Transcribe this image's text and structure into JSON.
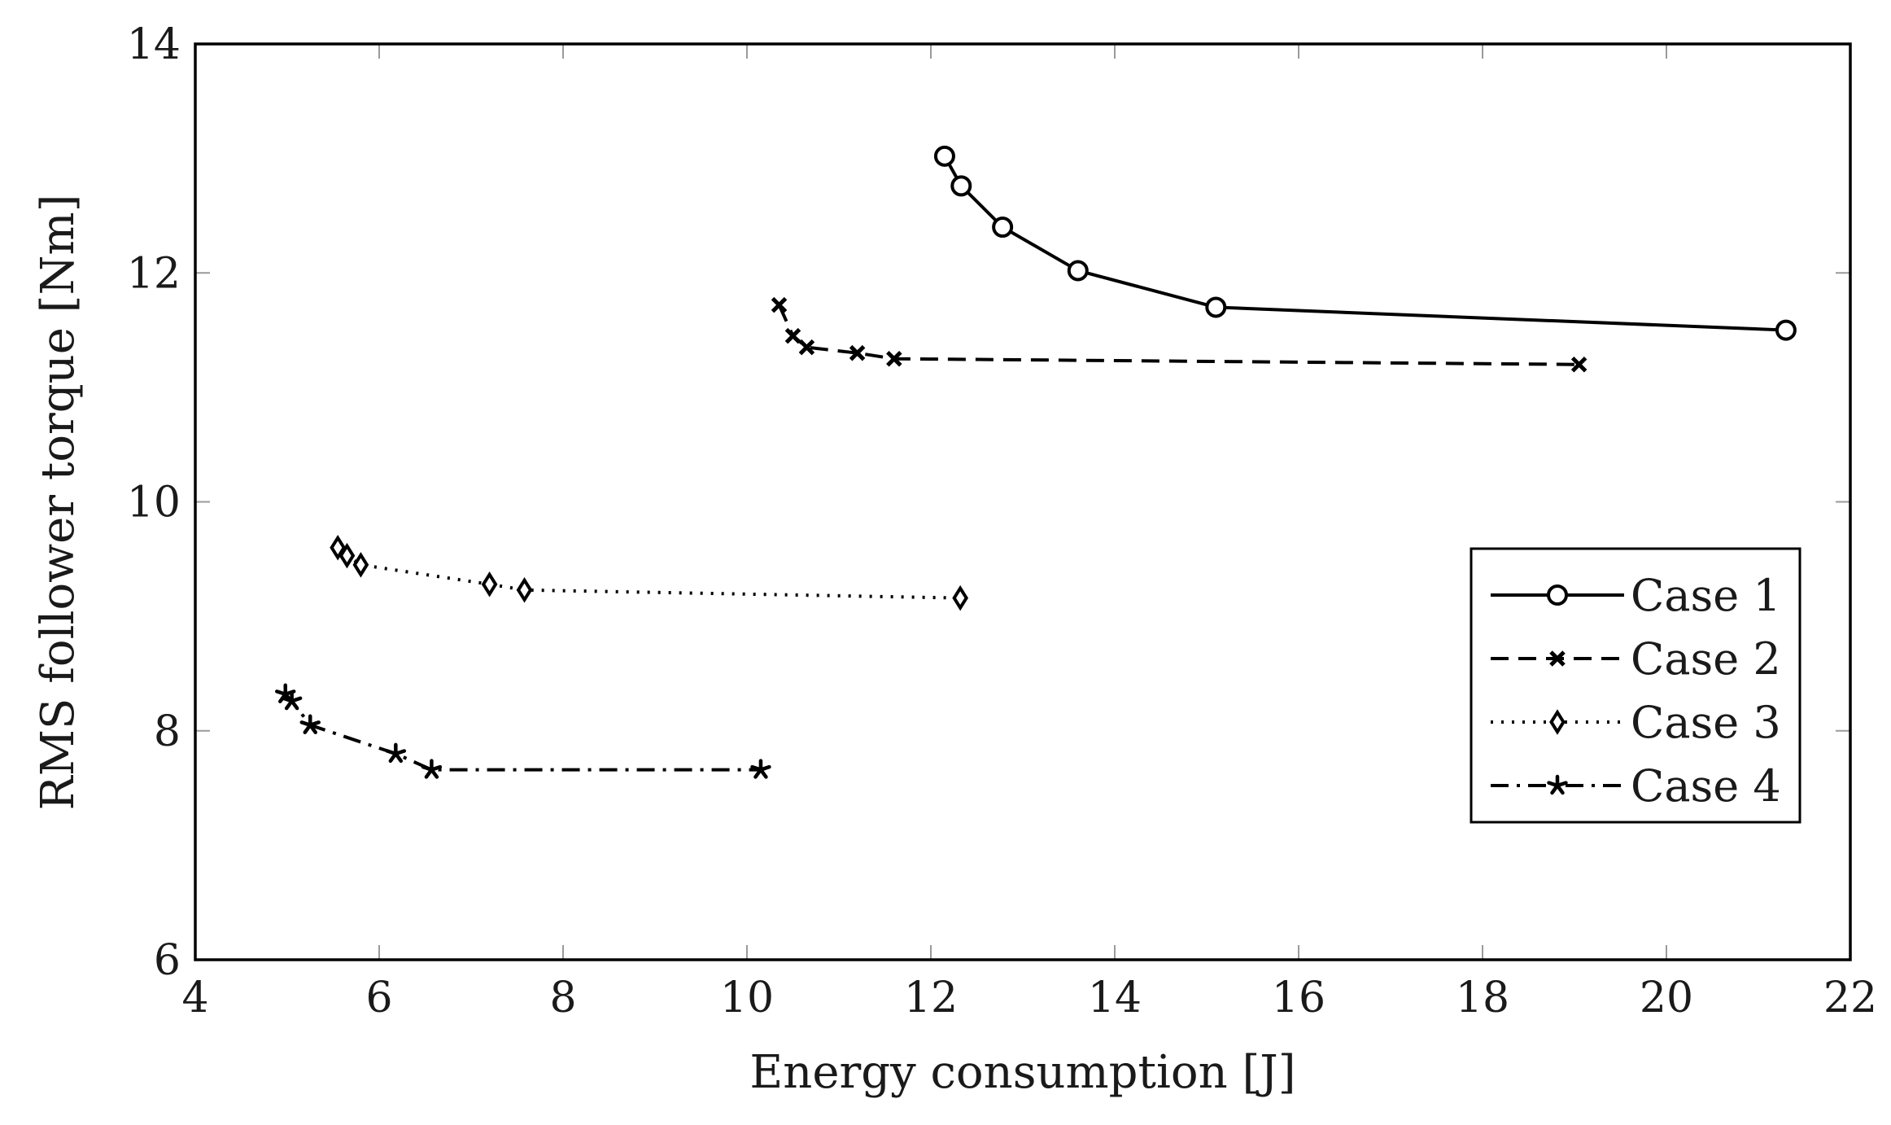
{
  "chart_data": {
    "type": "line",
    "title": "",
    "xlabel": "Energy consumption [J]",
    "ylabel": "RMS follower torque [Nm]",
    "xlim": [
      4,
      22
    ],
    "ylim": [
      6,
      14
    ],
    "xticks": [
      4,
      6,
      8,
      10,
      12,
      14,
      16,
      18,
      20,
      22
    ],
    "yticks": [
      6,
      8,
      10,
      12,
      14
    ],
    "grid": false,
    "legend_position": "center-right",
    "colors": {
      "line": "#000000",
      "axis": "#000000",
      "tick": "#9a9a9a"
    },
    "series": [
      {
        "name": "Case 1",
        "line_style": "solid",
        "marker": "circle",
        "x": [
          12.15,
          12.33,
          12.78,
          13.6,
          15.1,
          21.3
        ],
        "y": [
          13.02,
          12.76,
          12.4,
          12.02,
          11.7,
          11.5
        ]
      },
      {
        "name": "Case 2",
        "line_style": "dashed",
        "marker": "x",
        "x": [
          10.35,
          10.5,
          10.65,
          11.2,
          11.6,
          19.05
        ],
        "y": [
          11.72,
          11.45,
          11.35,
          11.3,
          11.25,
          11.2
        ]
      },
      {
        "name": "Case 3",
        "line_style": "dotted",
        "marker": "diamond",
        "x": [
          5.55,
          5.65,
          5.8,
          7.2,
          7.58,
          12.32
        ],
        "y": [
          9.6,
          9.53,
          9.45,
          9.28,
          9.23,
          9.16
        ]
      },
      {
        "name": "Case 4",
        "line_style": "dashdot",
        "marker": "asterisk",
        "x": [
          4.98,
          5.05,
          5.25,
          6.18,
          6.57,
          10.15
        ],
        "y": [
          8.32,
          8.26,
          8.05,
          7.8,
          7.66,
          7.66
        ]
      }
    ]
  }
}
